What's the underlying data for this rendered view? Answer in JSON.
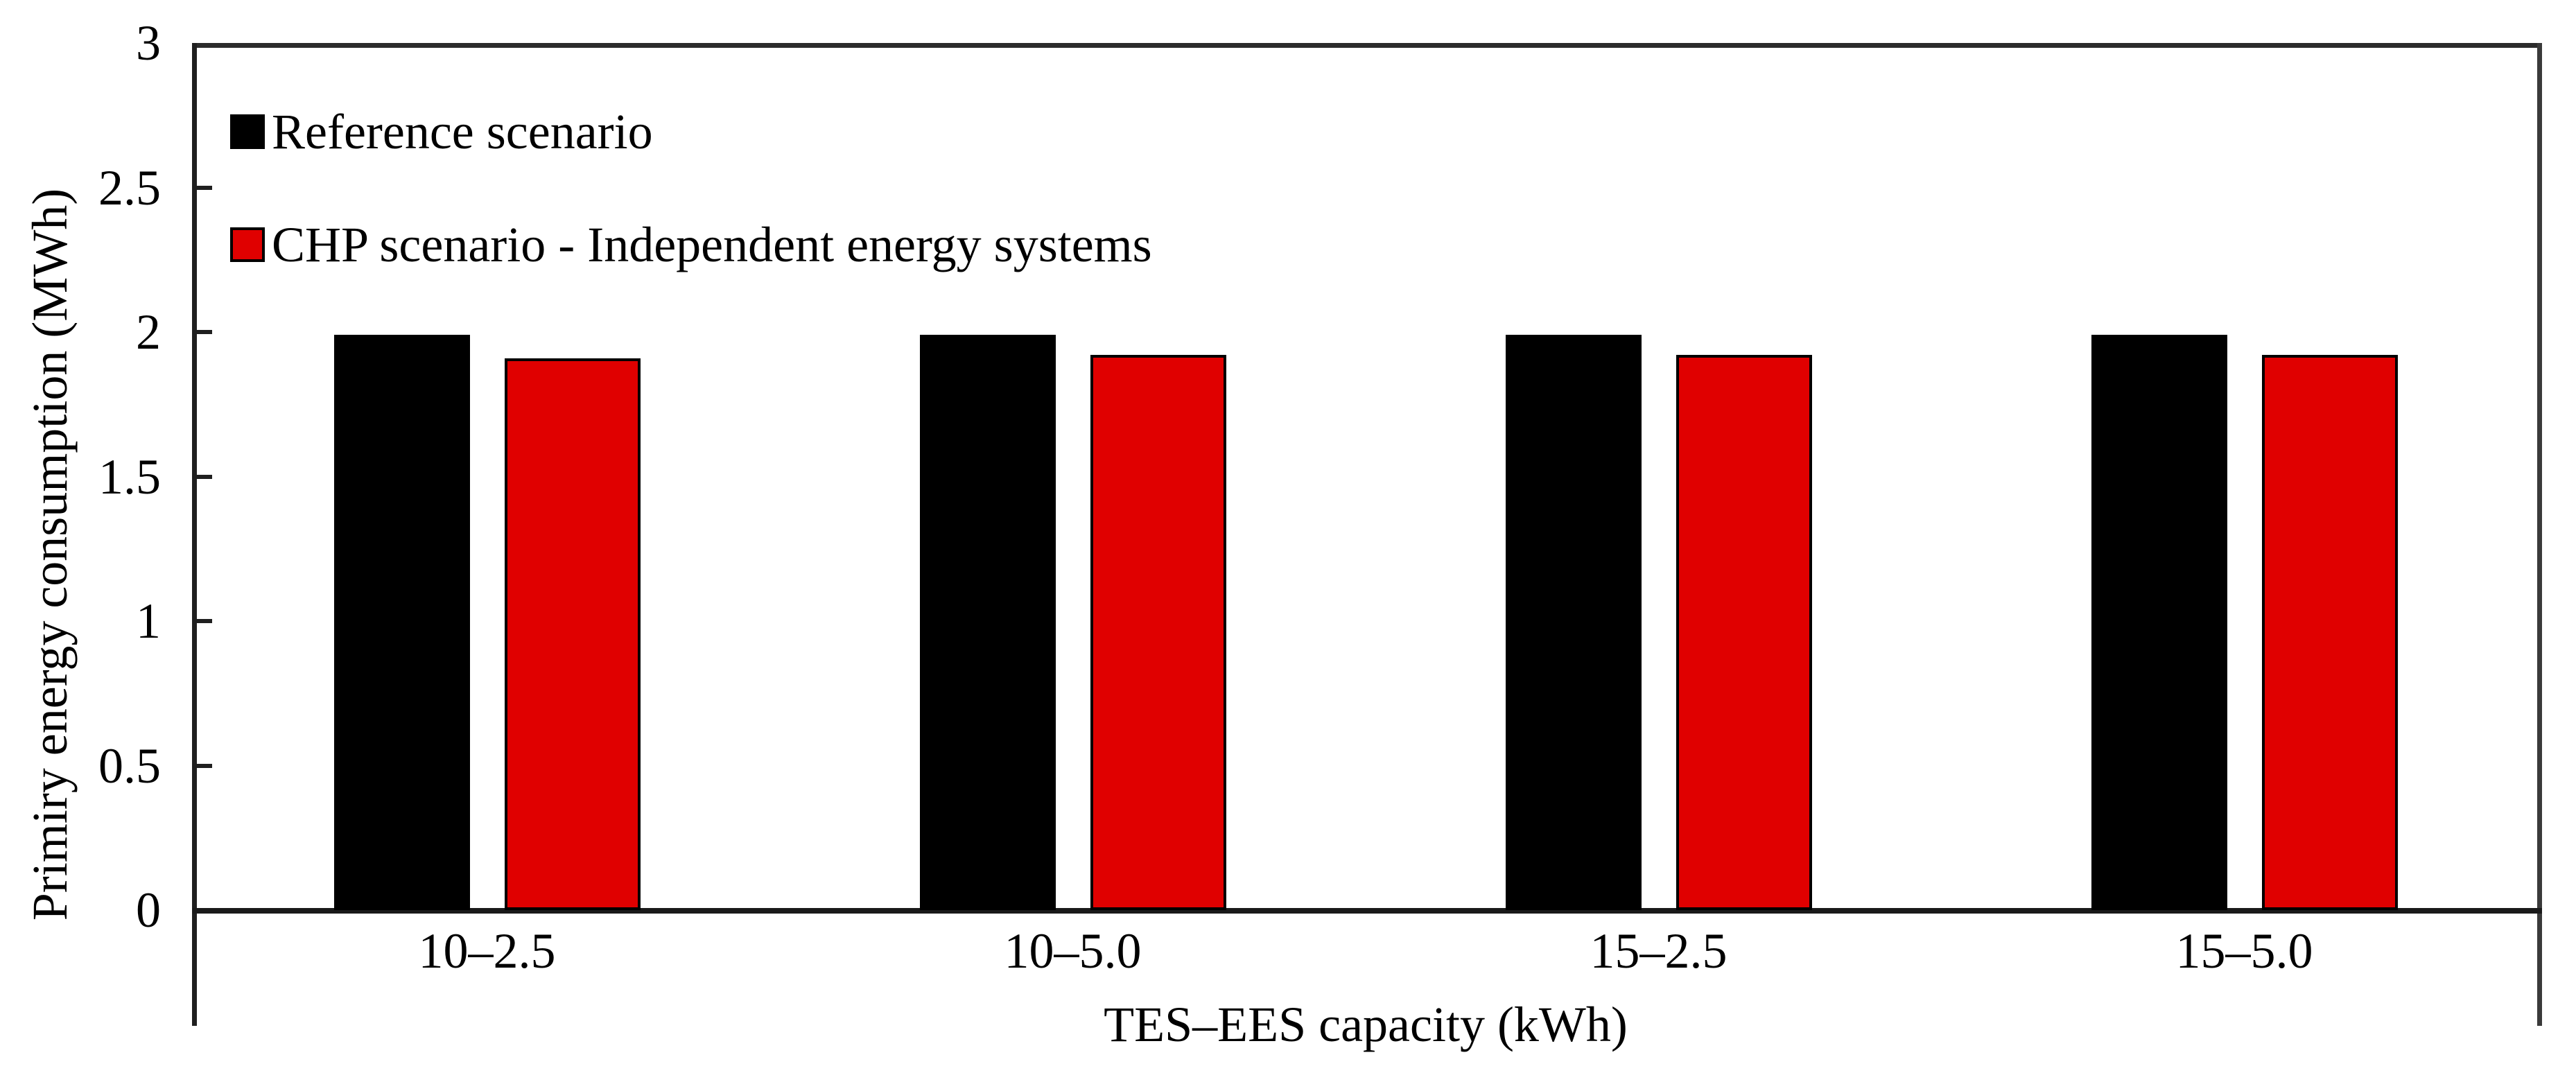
{
  "chart_data": {
    "type": "bar",
    "categories": [
      "10–2.5",
      "10–5.0",
      "15–2.5",
      "15–5.0"
    ],
    "series": [
      {
        "name": "Reference scenario",
        "color": "#000000",
        "values": [
          1.99,
          1.99,
          1.99,
          1.99
        ]
      },
      {
        "name": "CHP scenario - Independent energy systems",
        "color": "#e00000",
        "values": [
          1.91,
          1.92,
          1.92,
          1.92
        ]
      }
    ],
    "xlabel": "TES–EES capacity (kWh)",
    "ylabel": "Primiry energy consumption (MWh)",
    "ylim": [
      0,
      3
    ],
    "ytick_step": 0.5,
    "ytick_labels": [
      "0",
      "0.5",
      "1",
      "1.5",
      "2",
      "2.5",
      "3"
    ],
    "grid": false,
    "legend_position": "top-left-inside",
    "colors": {
      "reference_series": "#000000",
      "chp_series": "#e00000",
      "frame": "#2b2b2b",
      "axis": "#1a1a1a",
      "background": "#ffffff"
    }
  }
}
